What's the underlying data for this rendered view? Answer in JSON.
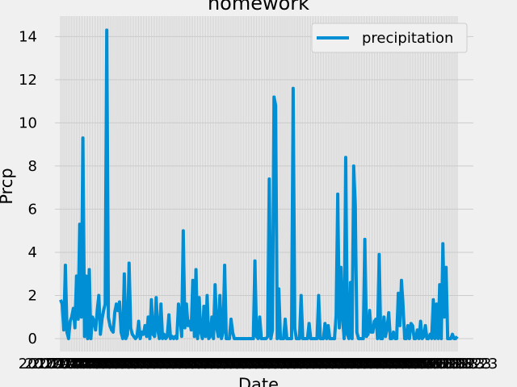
{
  "chart_data": {
    "type": "line",
    "title": "homework",
    "xlabel": "Date",
    "ylabel": "Prcp",
    "ylim": [
      -0.6,
      14.95
    ],
    "yticks": [
      "0",
      "2",
      "4",
      "6",
      "8",
      "10",
      "12",
      "14"
    ],
    "xtick_labels": [
      "2017-08-23"
    ],
    "grid": true,
    "legend": "top-right",
    "series": [
      {
        "name": "precipitation",
        "color": "#008fd5",
        "values": [
          1.8,
          1.6,
          0.4,
          3.4,
          0.3,
          0.0,
          0.8,
          1.0,
          1.4,
          0.5,
          2.9,
          0.9,
          5.3,
          1.0,
          9.3,
          0.1,
          2.9,
          0.0,
          3.2,
          0.0,
          1.0,
          0.8,
          0.4,
          1.3,
          2.0,
          0.2,
          0.9,
          1.3,
          1.6,
          14.3,
          1.0,
          0.6,
          0.4,
          0.3,
          1.2,
          1.6,
          1.3,
          1.7,
          0.3,
          0.0,
          3.0,
          0.0,
          0.2,
          3.5,
          0.5,
          0.2,
          0.1,
          0.0,
          0.1,
          0.8,
          0.0,
          0.3,
          0.2,
          0.6,
          0.1,
          1.0,
          0.0,
          1.8,
          0.2,
          0.1,
          1.9,
          0.4,
          0.0,
          1.6,
          0.0,
          0.2,
          0.0,
          0.1,
          1.1,
          0.0,
          0.1,
          0.0,
          0.1,
          0.0,
          1.6,
          1.0,
          0.1,
          5.0,
          0.5,
          1.6,
          0.6,
          0.8,
          0.4,
          2.7,
          0.1,
          3.2,
          0.0,
          1.9,
          0.3,
          0.0,
          1.5,
          0.1,
          2.0,
          0.0,
          0.1,
          1.0,
          0.0,
          2.5,
          0.5,
          0.1,
          2.0,
          0.0,
          0.3,
          3.4,
          0.0,
          0.0,
          0.0,
          0.9,
          0.3,
          0.0,
          0.0,
          0.0,
          0.0,
          0.0,
          0.0,
          0.0,
          0.0,
          0.0,
          0.0,
          0.0,
          0.0,
          0.0,
          3.6,
          0.1,
          0.0,
          1.0,
          0.0,
          0.0,
          0.0,
          0.0,
          0.1,
          7.4,
          0.0,
          0.4,
          11.2,
          10.8,
          0.0,
          2.3,
          0.0,
          0.0,
          0.0,
          0.9,
          0.0,
          0.0,
          0.0,
          0.0,
          11.6,
          0.5,
          0.0,
          0.0,
          0.0,
          2.0,
          0.0,
          0.0,
          0.0,
          0.0,
          0.7,
          0.0,
          0.0,
          0.0,
          0.0,
          0.0,
          2.0,
          0.0,
          0.0,
          0.0,
          0.7,
          0.0,
          0.6,
          0.0,
          0.0,
          0.0,
          0.0,
          1.1,
          6.7,
          0.5,
          3.3,
          1.0,
          0.0,
          8.4,
          0.2,
          0.0,
          2.6,
          0.0,
          8.0,
          6.1,
          0.3,
          0.0,
          0.0,
          0.0,
          0.0,
          4.6,
          0.1,
          0.2,
          1.3,
          0.3,
          0.3,
          0.8,
          0.9,
          0.0,
          3.9,
          0.0,
          0.0,
          1.0,
          0.1,
          0.5,
          1.2,
          0.0,
          0.0,
          0.3,
          0.0,
          0.0,
          2.1,
          0.6,
          2.7,
          1.5,
          0.0,
          0.0,
          0.6,
          0.0,
          0.7,
          0.6,
          0.0,
          0.0,
          0.4,
          0.0,
          0.8,
          0.0,
          0.1,
          0.6,
          0.0,
          0.0,
          0.2,
          0.0,
          1.8,
          0.0,
          1.6,
          0.0,
          2.5,
          0.0,
          4.4,
          1.0,
          3.3,
          0.0,
          0.0,
          0.0,
          0.2,
          0.0,
          0.0,
          0.1
        ]
      }
    ]
  }
}
